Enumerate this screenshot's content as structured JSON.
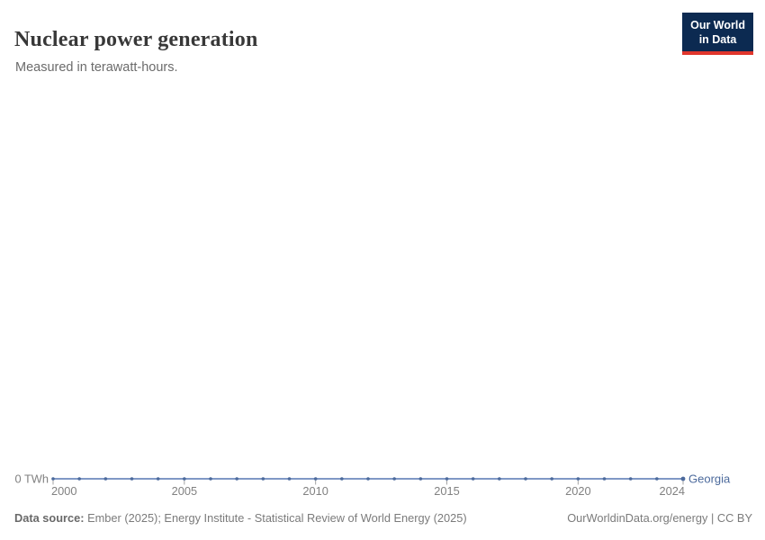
{
  "header": {
    "title": "Nuclear power generation",
    "subtitle": "Measured in terawatt-hours.",
    "logo": {
      "line1": "Our World",
      "line2": "in Data"
    }
  },
  "footer": {
    "source_label": "Data source:",
    "source_text": " Ember (2025); Energy Institute - Statistical Review of World Energy (2025)",
    "attribution": "OurWorldinData.org/energy | CC BY"
  },
  "colors": {
    "series": "#4c6a9c",
    "line": "#6d89bd",
    "axis_text": "#818181",
    "tick": "#a3a3a3",
    "logo_bg": "#0c2a51",
    "logo_red": "#e0362c"
  },
  "chart_data": {
    "type": "line",
    "title": "Nuclear power generation",
    "subtitle": "Measured in terawatt-hours.",
    "unit": "TWh",
    "grid": false,
    "legend_position": "end-of-line",
    "xlim": [
      2000,
      2024
    ],
    "ylim": [
      0,
      0
    ],
    "y_axis_label": "0 TWh",
    "x_ticks": [
      2000,
      2005,
      2010,
      2015,
      2020,
      2024
    ],
    "x": [
      2000,
      2001,
      2002,
      2003,
      2004,
      2005,
      2006,
      2007,
      2008,
      2009,
      2010,
      2011,
      2012,
      2013,
      2014,
      2015,
      2016,
      2017,
      2018,
      2019,
      2020,
      2021,
      2022,
      2023,
      2024
    ],
    "series": [
      {
        "name": "Georgia",
        "color": "#4c6a9c",
        "values": [
          0,
          0,
          0,
          0,
          0,
          0,
          0,
          0,
          0,
          0,
          0,
          0,
          0,
          0,
          0,
          0,
          0,
          0,
          0,
          0,
          0,
          0,
          0,
          0,
          0
        ]
      }
    ]
  }
}
